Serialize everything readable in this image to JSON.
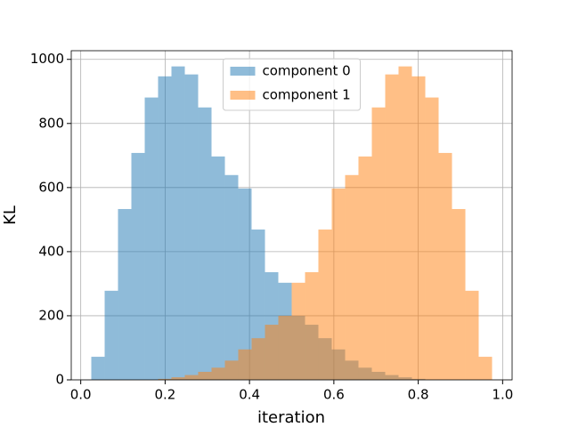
{
  "chart_data": {
    "type": "histogram",
    "xlabel": "iteration",
    "ylabel": "KL",
    "bins": [
      0.025,
      0.0567,
      0.0883,
      0.12,
      0.1517,
      0.1833,
      0.215,
      0.2467,
      0.2783,
      0.31,
      0.3417,
      0.3733,
      0.405,
      0.4367,
      0.4683,
      0.5,
      0.5317,
      0.5633,
      0.595,
      0.6267,
      0.6583,
      0.69,
      0.7217,
      0.7533,
      0.785,
      0.8167,
      0.8483,
      0.88,
      0.9117,
      0.9433,
      0.975
    ],
    "series": [
      {
        "name": "component 0",
        "color": "#1f77b4",
        "values": [
          72,
          278,
          533,
          708,
          881,
          947,
          978,
          953,
          850,
          697,
          639,
          597,
          469,
          336,
          303,
          200,
          172,
          130,
          95,
          60,
          38,
          25,
          15,
          8,
          3,
          0,
          0,
          0,
          0,
          0
        ]
      },
      {
        "name": "component 1",
        "color": "#ff7f0e",
        "values": [
          0,
          0,
          0,
          0,
          0,
          3,
          8,
          15,
          25,
          38,
          60,
          95,
          130,
          172,
          200,
          303,
          336,
          469,
          597,
          639,
          697,
          850,
          953,
          978,
          947,
          881,
          708,
          533,
          278,
          72
        ]
      }
    ],
    "alpha": 0.5,
    "xlim": [
      -0.0225,
      1.0225
    ],
    "ylim": [
      0,
      1027
    ],
    "xticks": [
      {
        "value": 0,
        "label": "0.0"
      },
      0.2,
      0.4,
      0.6,
      0.8,
      {
        "value": 1,
        "label": "1.0"
      }
    ],
    "yticks": [
      0,
      200,
      400,
      600,
      800,
      1000
    ],
    "grid": true,
    "legend": "upper center"
  }
}
